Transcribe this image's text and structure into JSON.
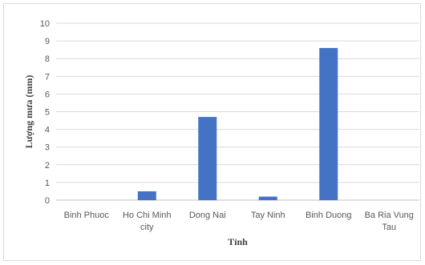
{
  "chart_data": {
    "type": "bar",
    "title": "",
    "xlabel": "Tỉnh",
    "ylabel": "Lượng mưa (mm)",
    "categories": [
      [
        "Binh Phuoc"
      ],
      [
        "Ho Chi Minh",
        "city"
      ],
      [
        "Dong Nai"
      ],
      [
        "Tay Ninh"
      ],
      [
        "Binh Duong"
      ],
      [
        "Ba Ria Vung",
        "Tau"
      ]
    ],
    "values": [
      0,
      0.5,
      4.7,
      0.2,
      8.6,
      0
    ],
    "ylim": [
      0,
      10
    ],
    "yticks": [
      0,
      1,
      2,
      3,
      4,
      5,
      6,
      7,
      8,
      9,
      10
    ],
    "grid": true,
    "legend": "none",
    "bar_color": "#4472c4"
  }
}
